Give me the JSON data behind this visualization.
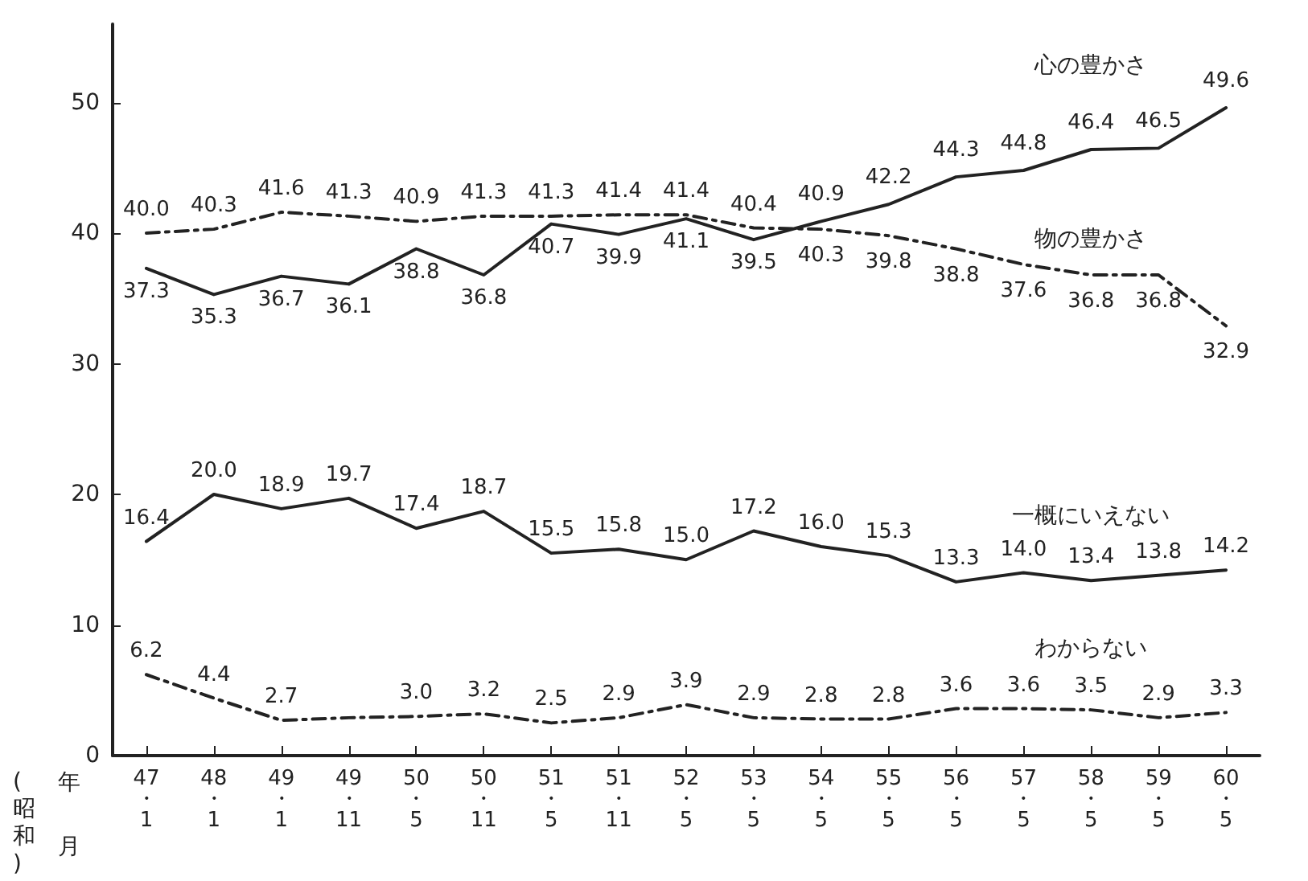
{
  "chart_data": {
    "type": "line",
    "categories": [
      "47\n・\n1",
      "48\n・\n1",
      "49\n・\n1",
      "49\n・\n11",
      "50\n・\n5",
      "50\n・\n11",
      "51\n・\n5",
      "51\n・\n11",
      "52\n・\n5",
      "53\n・\n5",
      "54\n・\n5",
      "55\n・\n5",
      "56\n・\n5",
      "57\n・\n5",
      "58\n・\n5",
      "59\n・\n5",
      "60\n・\n5"
    ],
    "series": [
      {
        "name": "心の豊かさ",
        "color": "#222222",
        "line_style": "solid",
        "values": [
          37.3,
          35.3,
          36.7,
          36.1,
          38.8,
          36.8,
          40.7,
          39.9,
          41.1,
          39.5,
          40.9,
          42.2,
          44.3,
          44.8,
          46.4,
          46.5,
          49.6
        ],
        "value_labels": [
          "37.3",
          "35.3",
          "36.7",
          "36.1",
          "38.8",
          "36.8",
          "40.7",
          "39.9",
          "41.1",
          "39.5",
          "40.9",
          "42.2",
          "44.3",
          "44.8",
          "46.4",
          "46.5",
          "49.6"
        ]
      },
      {
        "name": "物の豊かさ",
        "color": "#222222",
        "line_style": "dashed",
        "values": [
          40.0,
          40.3,
          41.6,
          41.3,
          40.9,
          41.3,
          41.3,
          41.4,
          41.4,
          40.4,
          40.3,
          39.8,
          38.8,
          37.6,
          36.8,
          36.8,
          32.9
        ],
        "value_labels": [
          "40.0",
          "40.3",
          "41.6",
          "41.3",
          "40.9",
          "41.3",
          "41.3",
          "41.4",
          "41.4",
          "40.4",
          "40.3",
          "39.8",
          "38.8",
          "37.6",
          "36.8",
          "36.8",
          "32.9"
        ]
      },
      {
        "name": "一概にいえない",
        "color": "#222222",
        "line_style": "solid",
        "values": [
          16.4,
          20.0,
          18.9,
          19.7,
          17.4,
          18.7,
          15.5,
          15.8,
          15.0,
          17.2,
          16.0,
          15.3,
          13.3,
          14.0,
          13.4,
          13.8,
          14.2
        ],
        "value_labels": [
          "16.4",
          "20.0",
          "18.9",
          "19.7",
          "17.4",
          "18.7",
          "15.5",
          "15.8",
          "15.0",
          "17.2",
          "16.0",
          "15.3",
          "13.3",
          "14.0",
          "13.4",
          "13.8",
          "14.2"
        ]
      },
      {
        "name": "わからない",
        "color": "#222222",
        "line_style": "dashed",
        "values": [
          6.2,
          4.4,
          2.7,
          2.9,
          3.0,
          3.2,
          2.5,
          2.9,
          3.9,
          2.9,
          2.8,
          2.8,
          3.6,
          3.6,
          3.5,
          2.9,
          3.3
        ],
        "value_labels": [
          "6.2",
          "4.4",
          "2.7",
          null,
          "3.0",
          "3.2",
          "2.5",
          "2.9",
          "3.9",
          "2.9",
          "2.8",
          "2.8",
          "3.6",
          "3.6",
          "3.5",
          "2.9",
          "3.3"
        ]
      }
    ],
    "xlabel": "(昭和)",
    "annotations": [
      "年",
      "月"
    ],
    "ylim": [
      0,
      56
    ],
    "yticks": [
      0,
      10,
      20,
      30,
      40,
      50
    ],
    "marker": "none",
    "grid": false,
    "legend": false
  }
}
